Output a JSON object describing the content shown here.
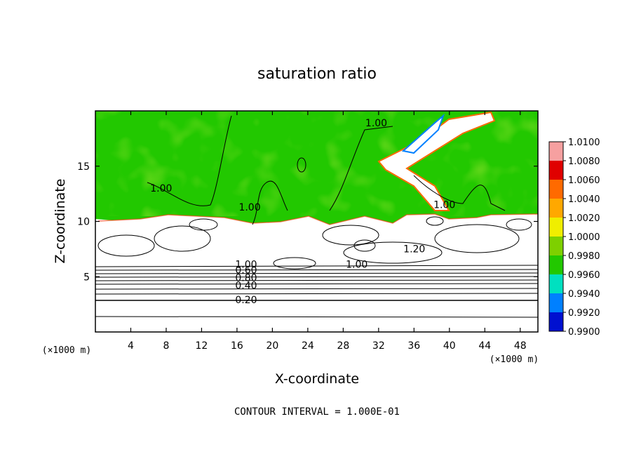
{
  "chart_data": {
    "type": "heatmap",
    "title": "saturation ratio",
    "xlabel": "X-coordinate",
    "ylabel": "Z-coordinate",
    "x_unit": "(×1000 m)",
    "y_unit": "(×1000 m)",
    "xlim": [
      0,
      50
    ],
    "ylim": [
      0,
      20
    ],
    "x_ticks": [
      4,
      8,
      12,
      16,
      20,
      24,
      28,
      32,
      36,
      40,
      44,
      48
    ],
    "y_ticks": [
      5,
      10,
      15
    ],
    "colorbar": {
      "levels": [
        "1.0100",
        "1.0080",
        "1.0060",
        "1.0040",
        "1.0020",
        "1.0000",
        "0.9980",
        "0.9960",
        "0.9940",
        "0.9920",
        "0.9900"
      ],
      "colors": [
        "#f6a0a0",
        "#e00000",
        "#ff6a00",
        "#ffa800",
        "#f0ee00",
        "#7ed000",
        "#22c800",
        "#00e0c0",
        "#0080ff",
        "#0010d0",
        "#7a00a0"
      ]
    },
    "contour_labels": [
      {
        "text": "1.00",
        "x": 30.5,
        "z": 18.6
      },
      {
        "text": "1.00",
        "x": 6.2,
        "z": 12.7
      },
      {
        "text": "1.00",
        "x": 16.2,
        "z": 11.0
      },
      {
        "text": "1.00",
        "x": 38.2,
        "z": 11.2
      },
      {
        "text": "1.20",
        "x": 34.8,
        "z": 7.2
      },
      {
        "text": "1.00",
        "x": 28.3,
        "z": 5.8
      },
      {
        "text": "1.00",
        "x": 15.8,
        "z": 5.8
      },
      {
        "text": "0.60",
        "x": 15.8,
        "z": 5.3
      },
      {
        "text": "0.40",
        "x": 15.8,
        "z": 3.9
      },
      {
        "text": "0.20",
        "x": 15.8,
        "z": 2.6
      },
      {
        "text": "0.80",
        "x": 15.8,
        "z": 4.6
      }
    ],
    "contour_interval_text": "CONTOUR INTERVAL = 1.000E-01"
  }
}
